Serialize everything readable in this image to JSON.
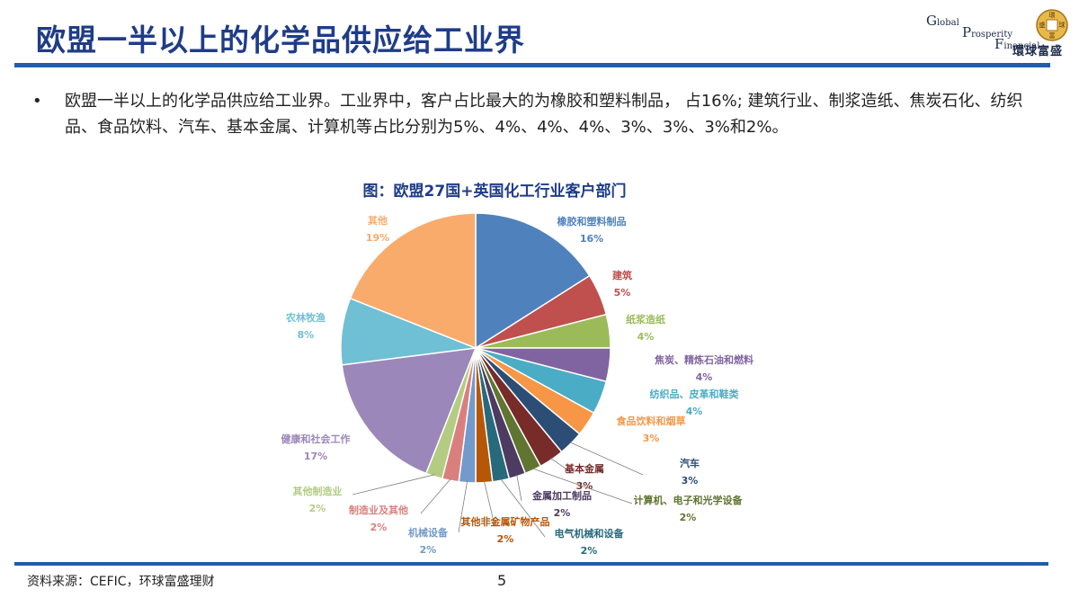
{
  "header": {
    "title": "欧盟一半以上的化学品供应给工业界",
    "logo": {
      "line1_initial": "G",
      "line1_rest": "lobal",
      "line2_initial": "P",
      "line2_rest": "rosperity",
      "line3_initial": "F",
      "line3_rest": "inancial",
      "cn": "環球富盛",
      "coin_chars": [
        "環",
        "球",
        "富",
        "盛"
      ]
    }
  },
  "bullet": {
    "marker": "•",
    "text": "欧盟一半以上的化学品供应给工业界。工业界中，客户占比最大的为橡胶和塑料制品， 占16%;  建筑行业、制浆造纸、焦炭石化、纺织品、食品饮料、汽车、基本金属、计算机等占比分别为5%、4%、4%、4%、3%、3%、3%和2%。"
  },
  "chart_title": "图：欧盟27国+英国化工行业客户部门",
  "chart_data": {
    "type": "pie",
    "title": "图：欧盟27国+英国化工行业客户部门",
    "slices": [
      {
        "label": "橡胶和塑料制品",
        "value": 16,
        "display": "16%",
        "color": "#4f81bd"
      },
      {
        "label": "建筑",
        "value": 5,
        "display": "5%",
        "color": "#c0504d"
      },
      {
        "label": "纸浆造纸",
        "value": 4,
        "display": "4%",
        "color": "#9bbb59"
      },
      {
        "label": "焦炭、精炼石油和燃料",
        "value": 4,
        "display": "4%",
        "color": "#8064a2"
      },
      {
        "label": "纺织品、皮革和鞋类",
        "value": 4,
        "display": "4%",
        "color": "#4bacc6"
      },
      {
        "label": "食品饮料和烟草",
        "value": 3,
        "display": "3%",
        "color": "#f79646"
      },
      {
        "label": "汽车",
        "value": 3,
        "display": "3%",
        "color": "#2c4d75"
      },
      {
        "label": "基本金属",
        "value": 3,
        "display": "3%",
        "color": "#772c2a"
      },
      {
        "label": "计算机、电子和光学设备",
        "value": 2,
        "display": "2%",
        "color": "#5f7530"
      },
      {
        "label": "金属加工制品",
        "value": 2,
        "display": "2%",
        "color": "#4d3b62"
      },
      {
        "label": "电气机械和设备",
        "value": 2,
        "display": "2%",
        "color": "#276a7c"
      },
      {
        "label": "其他非金属矿物产品",
        "value": 2,
        "display": "2%",
        "color": "#b65708"
      },
      {
        "label": "机械设备",
        "value": 2,
        "display": "2%",
        "color": "#729acb"
      },
      {
        "label": "制造业及其他",
        "value": 2,
        "display": "2%",
        "color": "#d9807e"
      },
      {
        "label": "其他制造业",
        "value": 2,
        "display": "2%",
        "color": "#b3cc82"
      },
      {
        "label": "健康和社会工作",
        "value": 17,
        "display": "17%",
        "color": "#9b87b9"
      },
      {
        "label": "农林牧渔",
        "value": 8,
        "display": "8%",
        "color": "#6fbfd5"
      },
      {
        "label": "其他",
        "value": 19,
        "display": "19%",
        "color": "#f9ab6b"
      }
    ]
  },
  "footer": {
    "source": "资料来源：CEFIC，环球富盛理财",
    "page_number": "5"
  }
}
